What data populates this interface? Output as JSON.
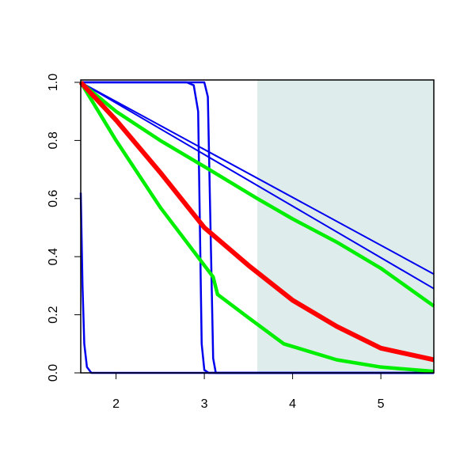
{
  "chart_data": {
    "type": "line",
    "xlim": [
      1.6,
      5.6
    ],
    "ylim": [
      0,
      1
    ],
    "xticks": [
      2,
      3,
      4,
      5
    ],
    "yticks": [
      {
        "value": 0,
        "label": "0.0"
      },
      0.2,
      0.4,
      0.6,
      0.8,
      {
        "value": 1,
        "label": "1.0"
      }
    ],
    "shaded_region": {
      "xlim": [
        3.6,
        5.6
      ],
      "color": "#dfecec"
    },
    "series": [
      {
        "color": "#0000ee",
        "x": [
          1.6,
          5.6
        ],
        "values": [
          1,
          0.34
        ]
      },
      {
        "color": "#0000ee",
        "x": [
          1.6,
          5.6
        ],
        "values": [
          1,
          0.29
        ]
      },
      {
        "color": "#0000ee",
        "x": [
          1.6,
          2.8,
          2.88,
          2.93,
          2.95,
          2.97,
          3.0,
          3.05,
          5.6
        ],
        "values": [
          1,
          1,
          0.99,
          0.9,
          0.5,
          0.1,
          0.01,
          0,
          0
        ]
      },
      {
        "color": "#0000ee",
        "x": [
          1.6,
          3.0,
          3.04,
          3.07,
          3.1,
          3.13,
          5.6
        ],
        "values": [
          1,
          1,
          0.95,
          0.5,
          0.05,
          0,
          0
        ]
      },
      {
        "color": "#0000ee",
        "x": [
          1.6,
          1.62,
          1.64,
          1.67,
          1.72,
          5.6
        ],
        "values": [
          0.62,
          0.3,
          0.1,
          0.02,
          0,
          0
        ]
      },
      {
        "color": "#00ee00",
        "x": [
          1.6,
          2,
          2.5,
          3,
          3.6,
          4,
          4.5,
          5,
          5.6
        ],
        "values": [
          1,
          0.9,
          0.8,
          0.71,
          0.6,
          0.53,
          0.45,
          0.36,
          0.23
        ]
      },
      {
        "color": "#00ee00",
        "x": [
          1.6,
          2,
          2.5,
          3,
          3.1,
          3.15,
          3.5,
          3.9,
          4.5,
          5,
          5.6
        ],
        "values": [
          1,
          0.8,
          0.57,
          0.37,
          0.33,
          0.27,
          0.19,
          0.1,
          0.045,
          0.02,
          0.005
        ]
      },
      {
        "color": "#ff0000",
        "x": [
          1.6,
          2,
          2.5,
          3,
          3.5,
          4,
          4.5,
          5,
          5.6
        ],
        "values": [
          1,
          0.87,
          0.69,
          0.5,
          0.37,
          0.25,
          0.16,
          0.085,
          0.045
        ]
      }
    ]
  }
}
